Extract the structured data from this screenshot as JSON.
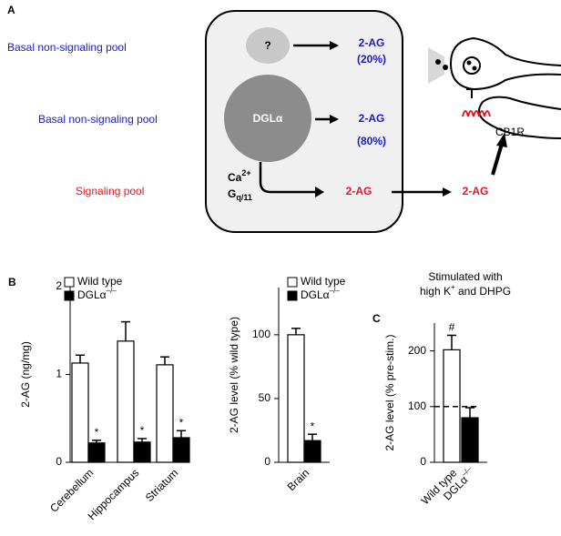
{
  "panel_a": {
    "label": "A",
    "pool_labels": [
      "Basal non-signaling pool",
      "Basal non-signaling pool",
      "Signaling pool"
    ],
    "unknown": "?",
    "enzyme": "DGLα",
    "products": [
      {
        "name": "2-AG",
        "share": "(20%)"
      },
      {
        "name": "2-AG",
        "share": "(80%)"
      },
      {
        "name": "2-AG"
      }
    ],
    "cofactors": [
      {
        "base": "Ca",
        "sup": "2+"
      },
      {
        "base": "G",
        "sub": "q/11"
      }
    ],
    "released": "2-AG",
    "receptor": "CB1R"
  },
  "chart_data": [
    {
      "type": "bar",
      "panel_label": "B",
      "ylabel": "2-AG (ng/mg)",
      "categories": [
        "Cerebellum",
        "Hippocampus",
        "Striatum"
      ],
      "series": [
        {
          "name": "Wild type",
          "color": "#ffffff",
          "values": [
            1.13,
            1.38,
            1.11
          ],
          "errors": [
            0.09,
            0.22,
            0.09
          ]
        },
        {
          "name": "DGLα",
          "name_sup": "–/–",
          "color": "#000000",
          "values": [
            0.22,
            0.23,
            0.28
          ],
          "errors": [
            0.03,
            0.04,
            0.08
          ],
          "annotations": [
            "*",
            "*",
            "*"
          ]
        }
      ],
      "ylim": [
        0,
        2
      ],
      "yticks": [
        0,
        1,
        2
      ],
      "legend": "top-left"
    },
    {
      "type": "bar",
      "ylabel": "2-AG level (% wild type)",
      "categories": [
        "Brain"
      ],
      "series": [
        {
          "name": "Wild type",
          "color": "#ffffff",
          "values": [
            100
          ],
          "errors": [
            5
          ]
        },
        {
          "name": "DGLα",
          "name_sup": "–/–",
          "color": "#000000",
          "values": [
            17
          ],
          "errors": [
            5
          ],
          "annotations": [
            "*"
          ]
        }
      ],
      "ylim": [
        0,
        137
      ],
      "yticks": [
        0,
        50,
        100
      ],
      "legend": "top-left"
    },
    {
      "type": "bar",
      "panel_label": "C",
      "title": [
        "Stimulated with",
        {
          "base": "high K",
          "sup": "+",
          "rest": " and DHPG"
        }
      ],
      "ylabel": "2-AG level (% pre-stim.)",
      "categories": [
        "Wild type",
        {
          "base": "DGLα",
          "sup": "–/–"
        }
      ],
      "values": [
        202,
        80
      ],
      "errors": [
        26,
        18
      ],
      "colors": [
        "#ffffff",
        "#000000"
      ],
      "annotations": [
        "#",
        null
      ],
      "refline": 100,
      "ylim": [
        0,
        250
      ],
      "yticks": [
        0,
        100,
        200
      ]
    }
  ]
}
